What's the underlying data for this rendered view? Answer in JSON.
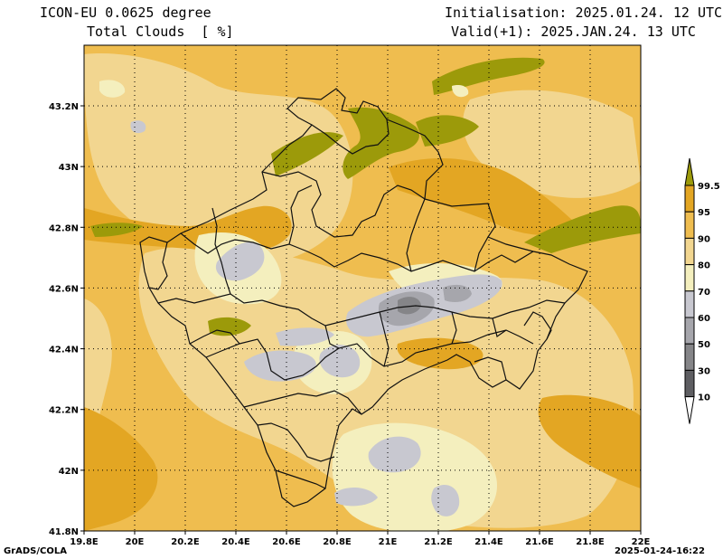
{
  "header": {
    "model": "ICON-EU 0.0625 degree",
    "field": "Total Clouds  [ %]",
    "init": "Initialisation: 2025.01.24. 12 UTC",
    "valid": "Valid(+1): 2025.JAN.24. 13 UTC"
  },
  "footer": {
    "credit": "GrADS/COLA",
    "timestamp": "2025-01-24-16:22"
  },
  "axes": {
    "lon_ticks": [
      "19.8E",
      "20E",
      "20.2E",
      "20.4E",
      "20.6E",
      "20.8E",
      "21E",
      "21.2E",
      "21.4E",
      "21.6E",
      "21.8E",
      "22E"
    ],
    "lat_ticks": [
      "41.8N",
      "42N",
      "42.2N",
      "42.4N",
      "42.6N",
      "42.8N",
      "43N",
      "43.2N"
    ]
  },
  "legend": {
    "labels": [
      "99.5",
      "95",
      "90",
      "80",
      "70",
      "60",
      "50",
      "30",
      "10"
    ],
    "colors": [
      "#9c9a0a",
      "#e3a623",
      "#efbd4f",
      "#f2d690",
      "#f4efbe",
      "#c8c8d0",
      "#a6a6ac",
      "#858588",
      "#5e5e62",
      "#ffffff"
    ]
  }
}
